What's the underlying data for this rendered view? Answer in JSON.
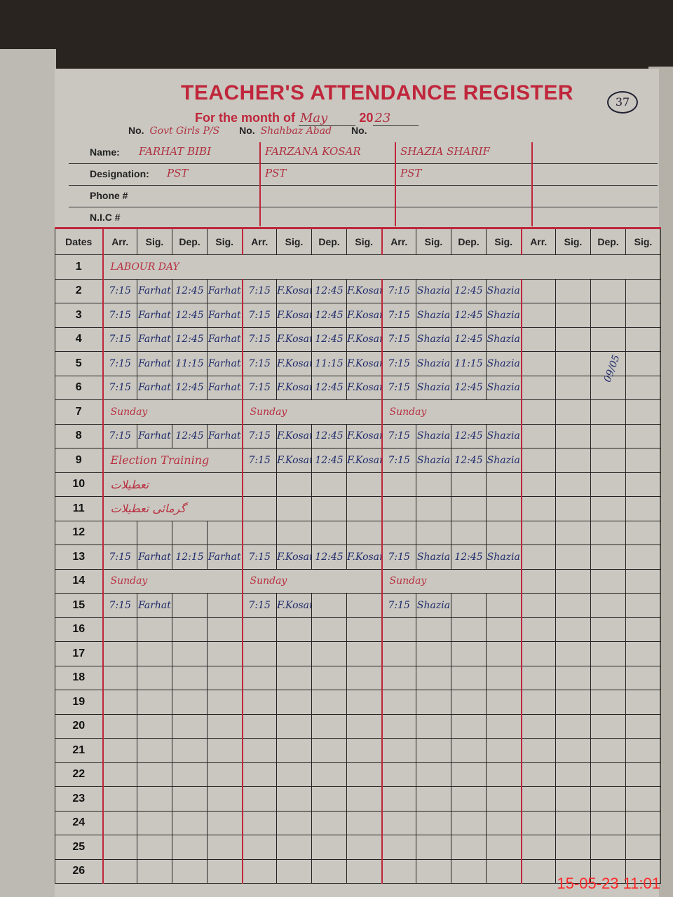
{
  "register": {
    "title": "TEACHER'S ATTENDANCE REGISTER",
    "page_number": "37",
    "month_label": "For the month of",
    "month": "May",
    "year_prefix": "20",
    "year_suffix": "23",
    "no_label": "No.",
    "school": "Govt Girls P/S",
    "place": "Shahbaz Abad"
  },
  "info_labels": {
    "name": "Name:",
    "designation": "Designation:",
    "phone": "Phone #",
    "nic": "N.I.C #"
  },
  "teachers": [
    {
      "name": "FARHAT BIBI",
      "designation": "PST"
    },
    {
      "name": "FARZANA KOSAR",
      "designation": "PST"
    },
    {
      "name": "SHAZIA SHARIF",
      "designation": "PST"
    },
    {
      "name": "",
      "designation": ""
    }
  ],
  "columns": {
    "dates": "Dates",
    "group": [
      "Arr.",
      "Sig.",
      "Dep.",
      "Sig."
    ]
  },
  "rows": [
    {
      "date": "1",
      "span": "LABOUR DAY"
    },
    {
      "date": "2",
      "cells": [
        "7:15",
        "Farhat",
        "12:45",
        "Farhat",
        "7:15",
        "F.Kosar",
        "12:45",
        "F.Kosar",
        "7:15",
        "Shazia",
        "12:45",
        "Shazia"
      ]
    },
    {
      "date": "3",
      "cells": [
        "7:15",
        "Farhat",
        "12:45",
        "Farhat",
        "7:15",
        "F.Kosar",
        "12:45",
        "F.Kosar",
        "7:15",
        "Shazia",
        "12:45",
        "Shazia"
      ]
    },
    {
      "date": "4",
      "cells": [
        "7:15",
        "Farhat",
        "12:45",
        "Farhat",
        "7:15",
        "F.Kosar",
        "12:45",
        "F.Kosar",
        "7:15",
        "Shazia",
        "12:45",
        "Shazia"
      ]
    },
    {
      "date": "5",
      "cells": [
        "7:15",
        "Farhat",
        "11:15",
        "Farhat",
        "7:15",
        "F.Kosar",
        "11:15",
        "F.Kosar",
        "7:15",
        "Shazia",
        "11:15",
        "Shazia"
      ]
    },
    {
      "date": "6",
      "cells": [
        "7:15",
        "Farhat",
        "12:45",
        "Farhat",
        "7:15",
        "F.Kosar",
        "12:45",
        "F.Kosar",
        "7:15",
        "Shazia",
        "12:45",
        "Shazia"
      ]
    },
    {
      "date": "7",
      "groups": [
        "Sunday",
        "Sunday",
        "Sunday"
      ]
    },
    {
      "date": "8",
      "cells": [
        "7:15",
        "Farhat",
        "12:45",
        "Farhat",
        "7:15",
        "F.Kosar",
        "12:45",
        "F.Kosar",
        "7:15",
        "Shazia",
        "12:45",
        "Shazia"
      ]
    },
    {
      "date": "9",
      "first_group_text": "Election Training",
      "cells": [
        "",
        "",
        "",
        "",
        "7:15",
        "F.Kosar",
        "12:45",
        "F.Kosar",
        "7:15",
        "Shazia",
        "12:45",
        "Shazia"
      ]
    },
    {
      "date": "10",
      "first_group_text": "تعطیلات"
    },
    {
      "date": "11",
      "first_group_text": "گرمائی تعطیلات"
    },
    {
      "date": "12"
    },
    {
      "date": "13",
      "cells": [
        "7:15",
        "Farhat",
        "12:15",
        "Farhat",
        "7:15",
        "F.Kosar",
        "12:45",
        "F.Kosar",
        "7:15",
        "Shazia",
        "12:45",
        "Shazia"
      ]
    },
    {
      "date": "14",
      "groups": [
        "Sunday",
        "Sunday",
        "Sunday"
      ]
    },
    {
      "date": "15",
      "cells": [
        "7:15",
        "Farhat",
        "",
        "",
        "7:15",
        "F.Kosar",
        "",
        "",
        "7:15",
        "Shazia",
        "",
        ""
      ]
    },
    {
      "date": "16"
    },
    {
      "date": "17"
    },
    {
      "date": "18"
    },
    {
      "date": "19"
    },
    {
      "date": "20"
    },
    {
      "date": "21"
    },
    {
      "date": "22"
    },
    {
      "date": "23"
    },
    {
      "date": "24"
    },
    {
      "date": "25"
    },
    {
      "date": "26"
    }
  ],
  "side_signature_date": "09/05",
  "camera_timestamp": "15-05-23  11:01",
  "colors": {
    "rule_red": "#c0263b",
    "ink_blue": "#1f2a6a",
    "ink_red": "#b93040",
    "timestamp": "#ff2a2a"
  }
}
